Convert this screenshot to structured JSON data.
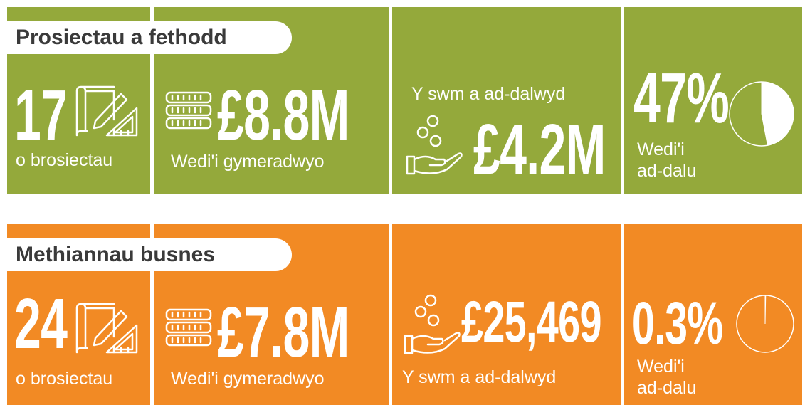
{
  "sections": [
    {
      "title": "Prosiectau a fethodd",
      "color": "#94a93b",
      "projects": "17",
      "projects_label": "o brosiectau",
      "approved": "£8.8M",
      "approved_label": "Wedi'i gymeradwyo",
      "repaid_label": "Y swm a ad-dalwyd",
      "repaid": "£4.2M",
      "percent": 47,
      "percent_label": "47%",
      "percent_caption": "Wedi'i ad-dalu"
    },
    {
      "title": "Methiannau busnes",
      "color": "#f28a24",
      "projects": "24",
      "projects_label": "o brosiectau",
      "approved": "£7.8M",
      "approved_label": "Wedi'i gymeradwyo",
      "repaid_label": "Y swm a ad-dalwyd",
      "repaid": "£25,469",
      "percent": 0.3,
      "percent_label": "0.3%",
      "percent_caption": "Wedi'i ad-dalu"
    }
  ]
}
